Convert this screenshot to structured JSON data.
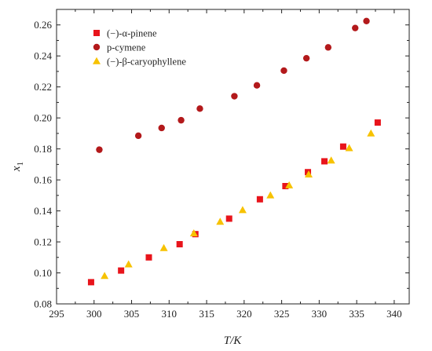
{
  "chart_data": {
    "type": "scatter",
    "xlabel": "T/K",
    "ylabel_main": "x",
    "ylabel_sub": "1",
    "xlim": [
      295,
      342
    ],
    "ylim": [
      0.08,
      0.27
    ],
    "xticks": [
      295,
      300,
      305,
      310,
      315,
      320,
      325,
      330,
      335,
      340
    ],
    "yticks": [
      0.08,
      0.1,
      0.12,
      0.14,
      0.16,
      0.18,
      0.2,
      0.22,
      0.24,
      0.26
    ],
    "grid": false,
    "legend_position": "top-left",
    "series": [
      {
        "name": "(−)-α-pinene",
        "marker": "square",
        "color": "#e8141b",
        "x": [
          299.6,
          303.6,
          307.3,
          311.4,
          313.5,
          318.0,
          322.1,
          325.5,
          328.5,
          330.7,
          333.2,
          337.8
        ],
        "y": [
          0.094,
          0.1015,
          0.11,
          0.1185,
          0.125,
          0.135,
          0.1475,
          0.156,
          0.165,
          0.172,
          0.1815,
          0.197
        ]
      },
      {
        "name": "p-cymene",
        "marker": "circle",
        "color": "#b3191b",
        "x": [
          300.7,
          305.9,
          309.0,
          311.6,
          314.1,
          318.7,
          321.7,
          325.3,
          328.3,
          331.2,
          334.8,
          336.3
        ],
        "y": [
          0.1795,
          0.1885,
          0.1935,
          0.1985,
          0.206,
          0.214,
          0.221,
          0.2305,
          0.2385,
          0.2455,
          0.258,
          0.2625
        ]
      },
      {
        "name": "(−)-β-caryophyllene",
        "marker": "triangle",
        "color": "#f7c200",
        "x": [
          301.4,
          304.6,
          309.3,
          313.3,
          316.8,
          319.8,
          323.5,
          326.0,
          328.6,
          331.6,
          334.0,
          336.9
        ],
        "y": [
          0.098,
          0.1055,
          0.116,
          0.1255,
          0.133,
          0.1405,
          0.15,
          0.1565,
          0.1635,
          0.1725,
          0.1805,
          0.19
        ]
      }
    ]
  }
}
